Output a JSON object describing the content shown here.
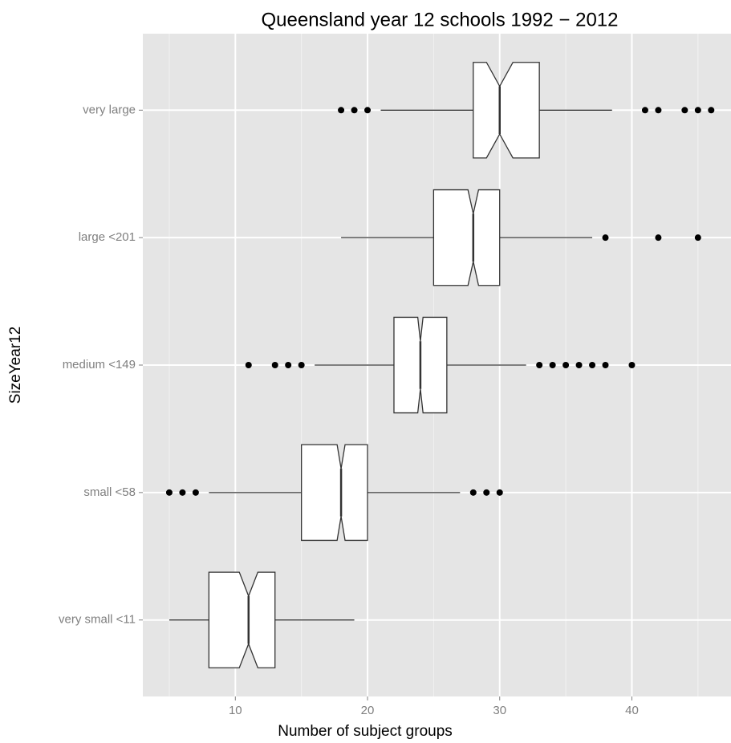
{
  "chart_data": {
    "type": "boxplot",
    "orientation": "horizontal",
    "notch": true,
    "title": "Queensland year 12 schools 1992 − 2012",
    "x_label": "Number of subject groups",
    "y_label": "SizeYear12",
    "categories": [
      "very large",
      "large <201",
      "medium <149",
      "small <58",
      "very small <11"
    ],
    "boxes": [
      {
        "whisker_low": 21,
        "q1": 28,
        "notch_low": 29,
        "median": 30,
        "notch_high": 31,
        "q3": 33,
        "whisker_high": 38.5,
        "outliers": [
          18,
          19,
          20,
          41,
          42,
          44,
          45,
          46
        ]
      },
      {
        "whisker_low": 18,
        "q1": 25,
        "notch_low": 27.6,
        "median": 28,
        "notch_high": 28.4,
        "q3": 30,
        "whisker_high": 37,
        "outliers": [
          38,
          42,
          45
        ]
      },
      {
        "whisker_low": 16,
        "q1": 22,
        "notch_low": 23.8,
        "median": 24,
        "notch_high": 24.2,
        "q3": 26,
        "whisker_high": 32,
        "outliers": [
          11,
          13,
          14,
          15,
          33,
          34,
          35,
          36,
          37,
          38,
          40
        ]
      },
      {
        "whisker_low": 8,
        "q1": 15,
        "notch_low": 17.7,
        "median": 18,
        "notch_high": 18.3,
        "q3": 20,
        "whisker_high": 27,
        "outliers": [
          5,
          6,
          7,
          28,
          29,
          30
        ]
      },
      {
        "whisker_low": 5,
        "q1": 8,
        "notch_low": 10.3,
        "median": 11,
        "notch_high": 11.7,
        "q3": 13,
        "whisker_high": 19,
        "outliers": []
      }
    ],
    "box_fill": "#ffffff",
    "box_stroke": "#333333",
    "outlier_color": "#000000",
    "xlim": [
      3,
      47.5
    ],
    "xticks": [
      10,
      20,
      30,
      40
    ],
    "minor_xticks": [
      5,
      15,
      25,
      35,
      45
    ],
    "grid": true
  }
}
